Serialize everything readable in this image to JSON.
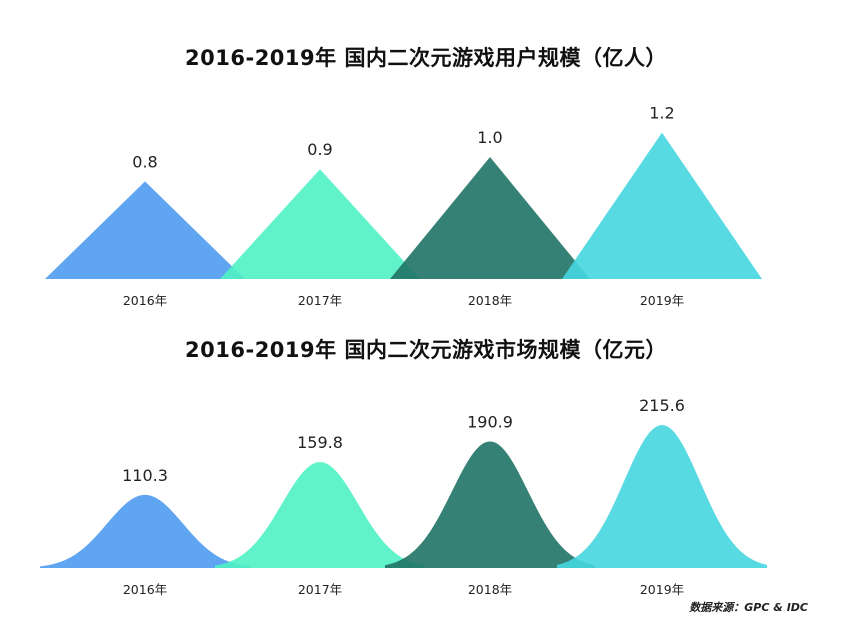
{
  "chart_data": [
    {
      "type": "area",
      "shape": "triangle",
      "title": "2016-2019年  国内二次元游戏用户规模（亿人）",
      "categories": [
        "2016年",
        "2017年",
        "2018年",
        "2019年"
      ],
      "values": [
        0.8,
        0.9,
        1.0,
        1.2
      ],
      "value_labels": [
        "0.8",
        "0.9",
        "1.0",
        "1.2"
      ],
      "colors": [
        "#4f9bf0",
        "#4ff2c4",
        "#1f7366",
        "#46d6e0"
      ],
      "legend": "none",
      "grid": false
    },
    {
      "type": "area",
      "shape": "bell",
      "title": "2016-2019年  国内二次元游戏市场规模（亿元）",
      "categories": [
        "2016年",
        "2017年",
        "2018年",
        "2019年"
      ],
      "values": [
        110.3,
        159.8,
        190.9,
        215.6
      ],
      "value_labels": [
        "110.3",
        "159.8",
        "190.9",
        "215.6"
      ],
      "colors": [
        "#4f9bf0",
        "#4ff2c4",
        "#1f7366",
        "#46d6e0"
      ],
      "legend": "none",
      "grid": false
    }
  ],
  "source": "数据来源：GPC & IDC"
}
